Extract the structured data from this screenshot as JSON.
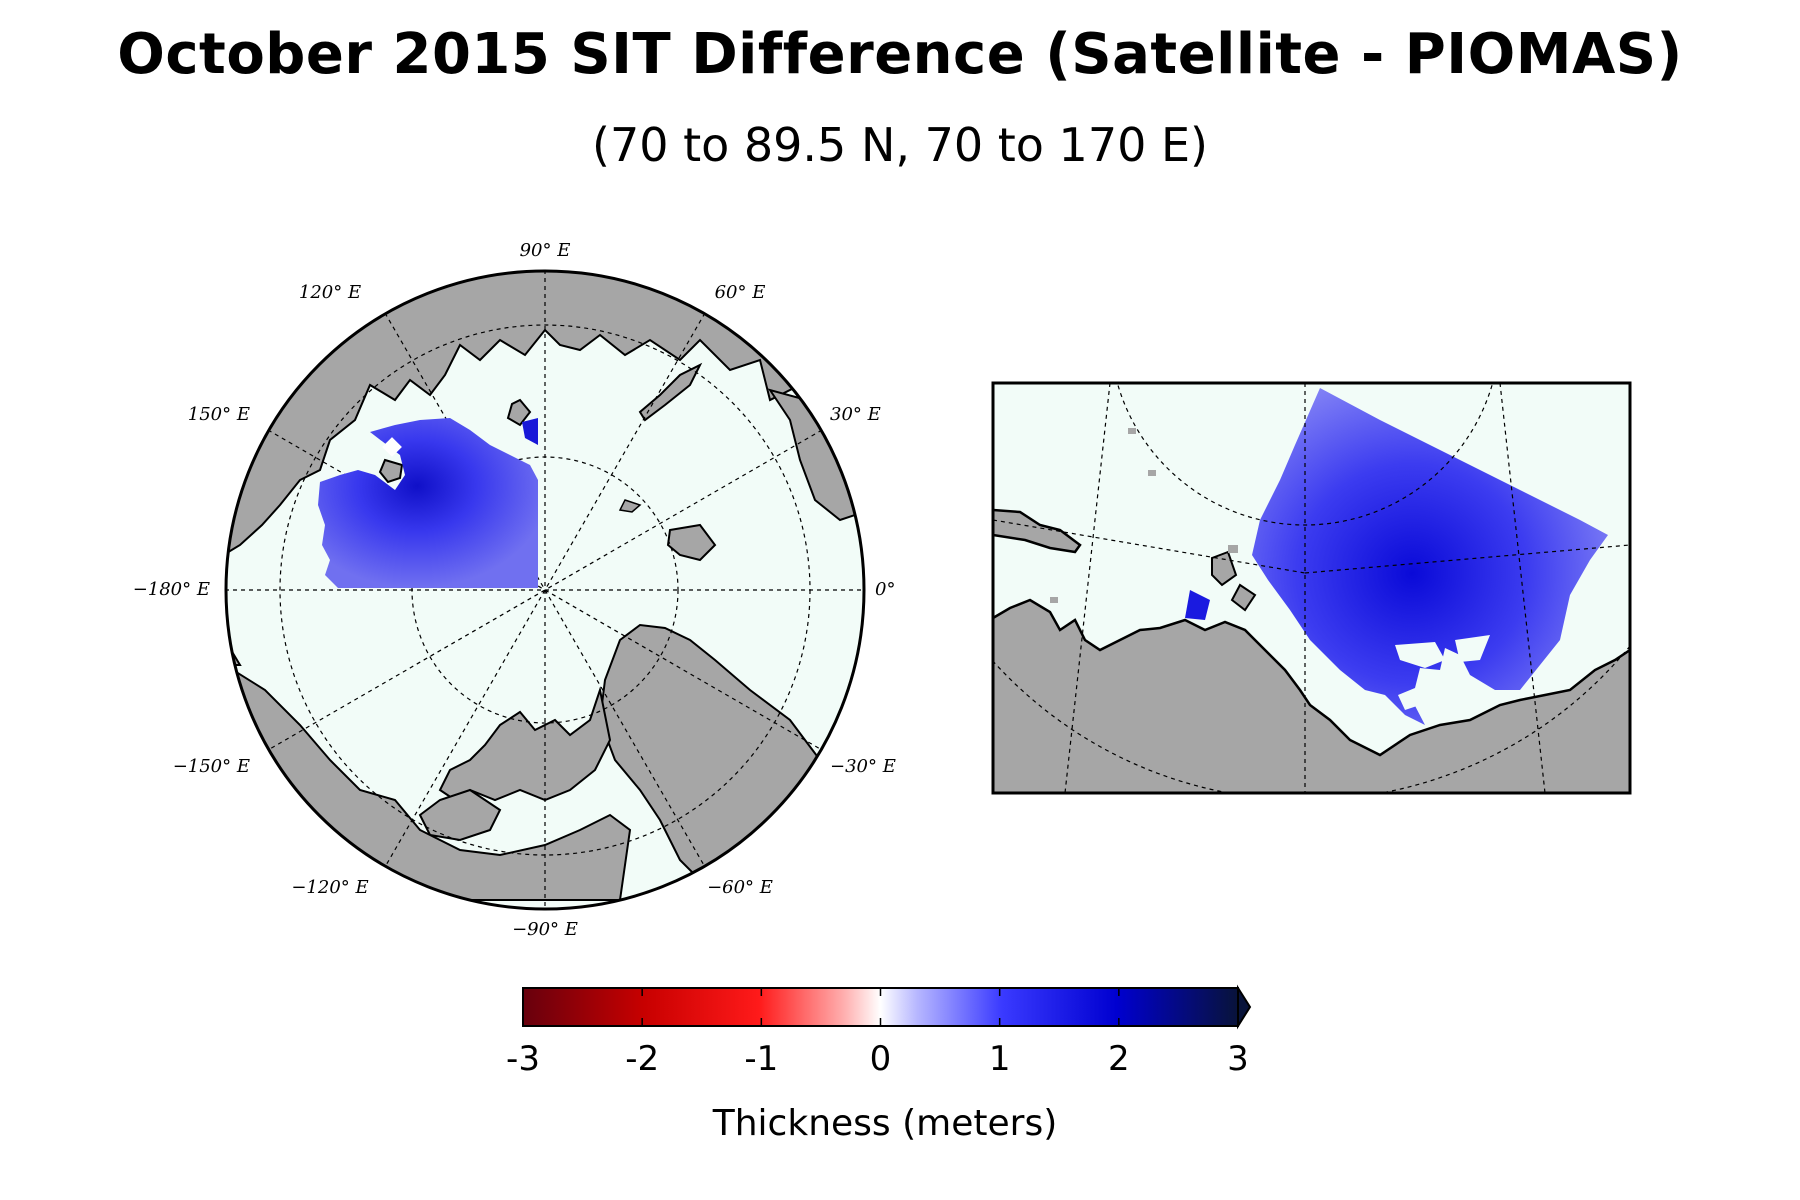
{
  "title": "October 2015 SIT Difference (Satellite - PIOMAS)",
  "subtitle": "(70 to 89.5 N, 70 to 170 E)",
  "polar_map": {
    "longitude_labels": [
      {
        "key": "lon-90e",
        "text": "90° E"
      },
      {
        "key": "lon-60e",
        "text": "60° E"
      },
      {
        "key": "lon-30e",
        "text": "30° E"
      },
      {
        "key": "lon-0",
        "text": "0°"
      },
      {
        "key": "lon-m30e",
        "text": "−30° E"
      },
      {
        "key": "lon-m60e",
        "text": "−60° E"
      },
      {
        "key": "lon-m90e",
        "text": "−90° E"
      },
      {
        "key": "lon-m120e",
        "text": "−120° E"
      },
      {
        "key": "lon-m150e",
        "text": "−150° E"
      },
      {
        "key": "lon-m180e",
        "text": "−180° E"
      },
      {
        "key": "lon-150e",
        "text": "150° E"
      },
      {
        "key": "lon-120e",
        "text": "120° E"
      }
    ]
  },
  "colorbar": {
    "ticks": [
      "-3",
      "-2",
      "-1",
      "0",
      "1",
      "2",
      "3"
    ],
    "min": -3,
    "max": 3,
    "label": "Thickness (meters)",
    "extend": "max",
    "colors": {
      "low": "#67000d",
      "mid_red": "#ff0000",
      "center": "#ffffff",
      "mid_blue": "#0000ff",
      "high": "#08133a"
    }
  },
  "colors": {
    "ocean": "#f2fcf8",
    "land": "#a6a6a6",
    "anomaly_blue": "#3030ee",
    "anomaly_light": "#8a8af8"
  }
}
